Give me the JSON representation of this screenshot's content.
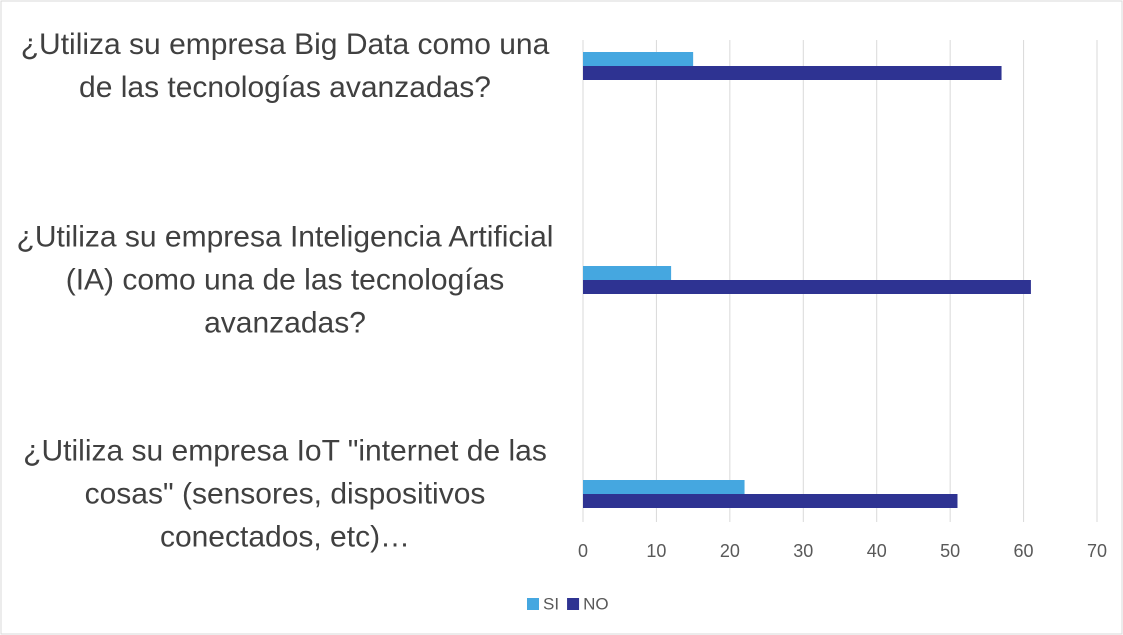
{
  "chart_data": {
    "type": "barh",
    "categories": [
      "¿Utiliza su empresa Big Data como una de las tecnologías avanzadas?",
      "¿Utiliza su empresa Inteligencia Artificial (IA) como una de las tecnologías avanzadas?",
      "¿Utiliza su empresa IoT \"internet de las cosas\" (sensores, dispositivos conectados, etc)…"
    ],
    "series": [
      {
        "name": "SI",
        "color": "#45a7e0",
        "values": [
          15,
          12,
          22
        ]
      },
      {
        "name": "NO",
        "color": "#2e3392",
        "values": [
          57,
          61,
          51
        ]
      }
    ],
    "xlim": [
      0,
      70
    ],
    "xticks": [
      0,
      10,
      20,
      30,
      40,
      50,
      60,
      70
    ],
    "grid": true,
    "legend": "bottom"
  }
}
